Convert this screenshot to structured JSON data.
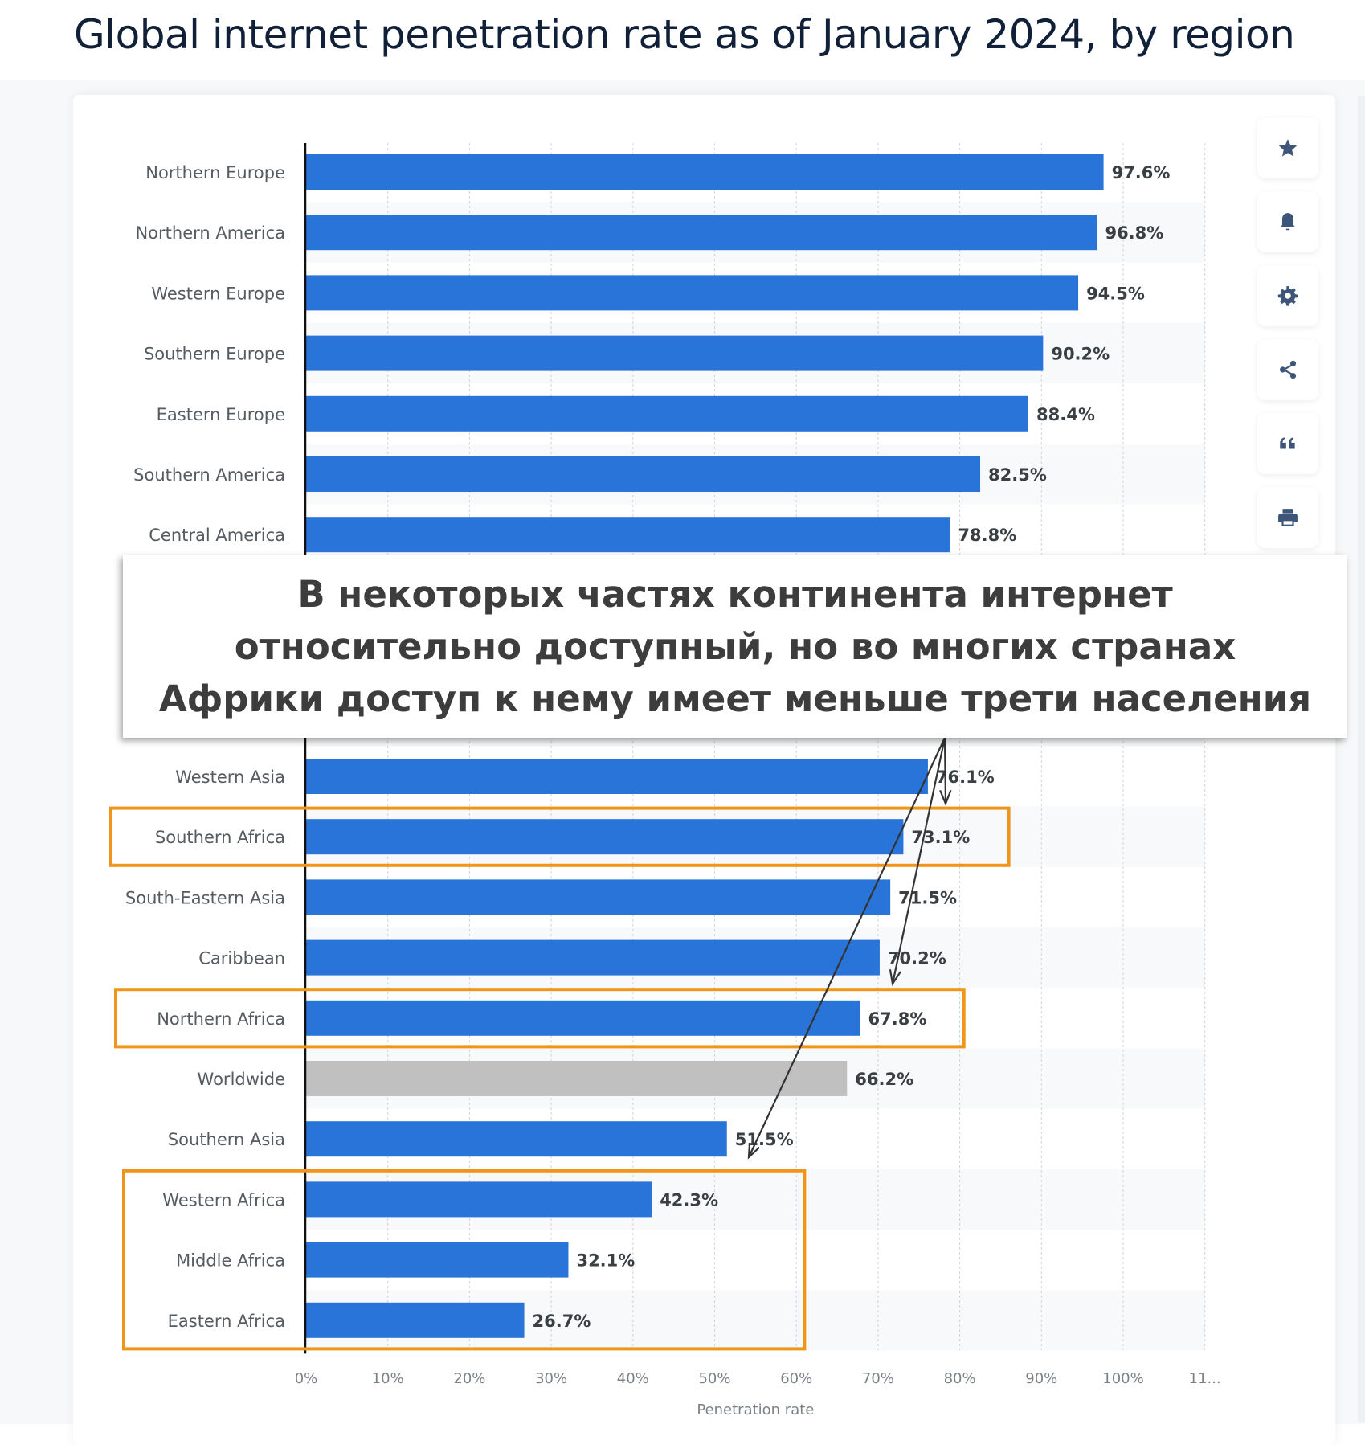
{
  "page": {
    "title": "Global internet penetration rate as of January 2024, by region"
  },
  "toolbar": {
    "buttons": [
      {
        "icon": "star-icon",
        "label": "Favorite"
      },
      {
        "icon": "bell-icon",
        "label": "Notifications"
      },
      {
        "icon": "gear-icon",
        "label": "Settings"
      },
      {
        "icon": "share-icon",
        "label": "Share"
      },
      {
        "icon": "quote-icon",
        "label": "Cite"
      },
      {
        "icon": "print-icon",
        "label": "Print"
      }
    ]
  },
  "overlay": {
    "lines": [
      "В некоторых частях континента интернет",
      "относительно доступный, но во многих странах",
      "Африки доступ к нему имеет меньше трети населения"
    ]
  },
  "colors": {
    "bar": "#2874d9",
    "bar_highlight": "#c0c0c0",
    "annotation_box": "#f0951a",
    "arrow": "#333333"
  },
  "chart_data": {
    "type": "bar",
    "orientation": "horizontal",
    "title": "Global internet penetration rate as of January 2024, by region",
    "xlabel": "Penetration rate",
    "ylabel": "",
    "xlim": [
      0,
      110
    ],
    "grid": true,
    "x_ticks": [
      "0%",
      "10%",
      "20%",
      "30%",
      "40%",
      "50%",
      "60%",
      "70%",
      "80%",
      "90%",
      "100%",
      "11..."
    ],
    "row_count": 20,
    "categories": [
      {
        "row": 0,
        "name": "Northern Europe",
        "value": 97.6,
        "label": "97.6%"
      },
      {
        "row": 1,
        "name": "Northern America",
        "value": 96.8,
        "label": "96.8%"
      },
      {
        "row": 2,
        "name": "Western Europe",
        "value": 94.5,
        "label": "94.5%"
      },
      {
        "row": 3,
        "name": "Southern Europe",
        "value": 90.2,
        "label": "90.2%"
      },
      {
        "row": 4,
        "name": "Eastern Europe",
        "value": 88.4,
        "label": "88.4%"
      },
      {
        "row": 5,
        "name": "Southern America",
        "value": 82.5,
        "label": "82.5%"
      },
      {
        "row": 6,
        "name": "Central America",
        "value": 78.8,
        "label": "78.8%"
      },
      {
        "row": 10,
        "name": "Western Asia",
        "value": 76.1,
        "label": "76.1%"
      },
      {
        "row": 11,
        "name": "Southern Africa",
        "value": 73.1,
        "label": "73.1%"
      },
      {
        "row": 12,
        "name": "South-Eastern Asia",
        "value": 71.5,
        "label": "71.5%"
      },
      {
        "row": 13,
        "name": "Caribbean",
        "value": 70.2,
        "label": "70.2%"
      },
      {
        "row": 14,
        "name": "Northern Africa",
        "value": 67.8,
        "label": "67.8%"
      },
      {
        "row": 15,
        "name": "Worldwide",
        "value": 66.2,
        "label": "66.2%",
        "highlight": true
      },
      {
        "row": 16,
        "name": "Southern Asia",
        "value": 51.5,
        "label": "51.5%"
      },
      {
        "row": 17,
        "name": "Western Africa",
        "value": 42.3,
        "label": "42.3%"
      },
      {
        "row": 18,
        "name": "Middle Africa",
        "value": 32.1,
        "label": "32.1%"
      },
      {
        "row": 19,
        "name": "Eastern Africa",
        "value": 26.7,
        "label": "26.7%"
      }
    ],
    "annotations": {
      "boxes": [
        {
          "rows": [
            11,
            11
          ],
          "to_value": 86,
          "label": "Southern Africa"
        },
        {
          "rows": [
            14,
            14
          ],
          "to_value": 80.5,
          "label": "Northern Africa"
        },
        {
          "rows": [
            17,
            19
          ],
          "to_value": 61,
          "label": "Western/Middle/Eastern Africa"
        }
      ],
      "arrows_from_overlay_to": [
        "Southern Africa",
        "Northern Africa",
        "Western Africa"
      ]
    }
  }
}
